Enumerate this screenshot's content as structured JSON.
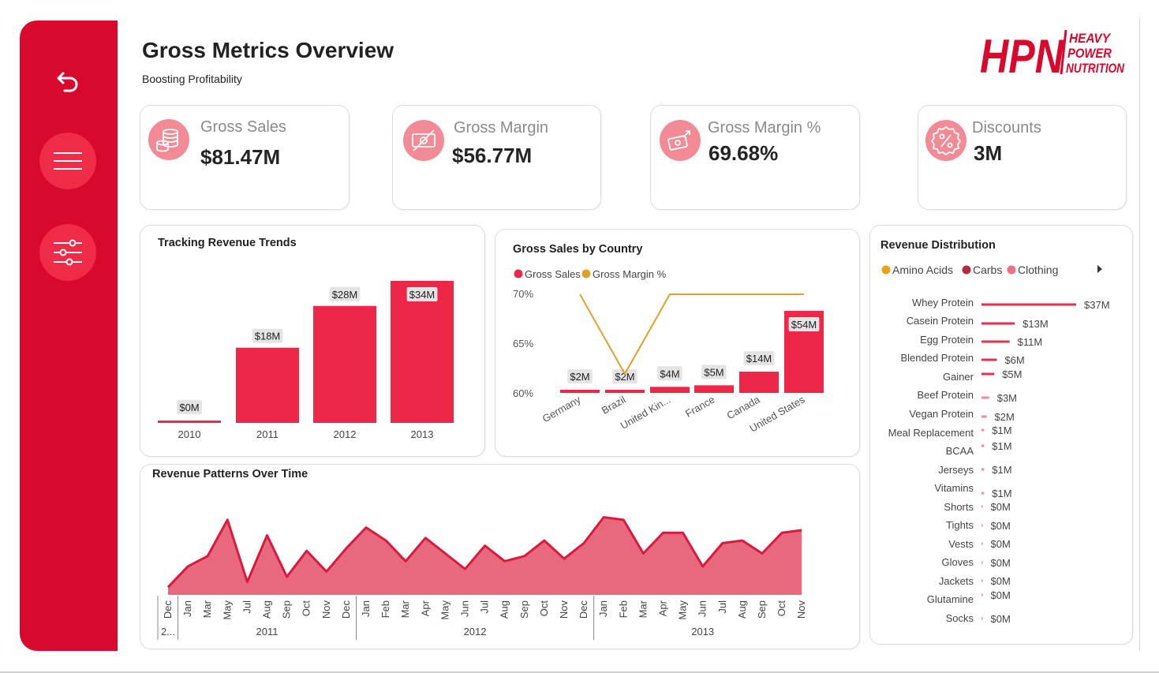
{
  "header": {
    "title": "Gross Metrics Overview",
    "subtitle": "Boosting Profitability"
  },
  "logo": {
    "mark": "HPN",
    "line1": "HEAVY",
    "line2": "POWER",
    "line3": "NUTRITION"
  },
  "sidebar": {
    "items": [
      {
        "icon": "back-arrow-icon"
      },
      {
        "icon": "menu-icon"
      },
      {
        "icon": "sliders-icon"
      }
    ]
  },
  "colors": {
    "brand": "#d9082d",
    "bar": "#ee2648",
    "line": "#dca328",
    "area": "#e8697e",
    "area_line": "#d81b3c"
  },
  "kpis": [
    {
      "label": "Gross Sales",
      "value": "$81.47M",
      "icon": "coins-icon"
    },
    {
      "label": "Gross Margin",
      "value": "$56.77M",
      "icon": "money-icon"
    },
    {
      "label": "Gross Margin %",
      "value": "69.68%",
      "icon": "cash-up-icon"
    },
    {
      "label": "Discounts",
      "value": "3M",
      "icon": "percent-badge-icon"
    }
  ],
  "panels": {
    "trends": "Tracking Revenue Trends",
    "country": "Gross Sales by Country",
    "distribution": "Revenue Distribution",
    "patterns": "Revenue Patterns Over Time"
  },
  "chart_data": [
    {
      "type": "bar",
      "title": "Tracking Revenue Trends",
      "categories": [
        "2010",
        "2011",
        "2012",
        "2013"
      ],
      "values": [
        0.2,
        18,
        28,
        34
      ],
      "labels": [
        "$0M",
        "$18M",
        "$28M",
        "$34M"
      ],
      "ylim": [
        0,
        34
      ]
    },
    {
      "type": "bar",
      "title": "Gross Sales by Country",
      "legend": [
        "Gross Sales",
        "Gross Margin %"
      ],
      "categories": [
        "Germany",
        "Brazil",
        "United Kin...",
        "France",
        "Canada",
        "United States"
      ],
      "series": [
        {
          "name": "Gross Sales",
          "values": [
            2,
            2,
            4,
            5,
            14,
            54
          ],
          "labels": [
            "$2M",
            "$2M",
            "$4M",
            "$5M",
            "$14M",
            "$54M"
          ]
        },
        {
          "name": "Gross Margin %",
          "values": [
            70,
            62,
            70,
            70,
            70,
            70
          ]
        }
      ],
      "y_ticks": [
        "70%",
        "65%",
        "60%"
      ],
      "ylim": [
        60,
        70
      ]
    },
    {
      "type": "bar",
      "title": "Revenue Distribution",
      "legend": [
        "Amino Acids",
        "Carbs",
        "Clothing"
      ],
      "legend_colors": [
        "#e8a317",
        "#b42b3d",
        "#ee6f82"
      ],
      "categories": [
        "Whey Protein",
        "Casein Protein",
        "Egg Protein",
        "Blended Protein",
        "Gainer",
        "Beef Protein",
        "Vegan Protein",
        "Meal Replacement",
        "BCAA",
        "Jerseys",
        "Vitamins",
        "Shorts",
        "Tights",
        "Vests",
        "Gloves",
        "Jackets",
        "Glutamine",
        "Socks"
      ],
      "values": [
        37,
        13,
        11,
        6,
        5,
        3,
        2,
        1,
        1,
        1,
        1,
        0,
        0,
        0,
        0,
        0,
        0,
        0
      ],
      "labels": [
        "$37M",
        "$13M",
        "$11M",
        "$6M",
        "$5M",
        "$3M",
        "$2M",
        "$1M",
        "$1M",
        "$1M",
        "$1M",
        "$0M",
        "$0M",
        "$0M",
        "$0M",
        "$0M",
        "$0M",
        "$0M"
      ]
    },
    {
      "type": "area",
      "title": "Revenue Patterns Over Time",
      "months": [
        "Dec",
        "Jan",
        "Mar",
        "May",
        "Jul",
        "Aug",
        "Sep",
        "Oct",
        "Nov",
        "Dec",
        "Jan",
        "Feb",
        "Mar",
        "Apr",
        "May",
        "Jun",
        "Jul",
        "Aug",
        "Sep",
        "Oct",
        "Nov",
        "Dec",
        "Jan",
        "Feb",
        "Mar",
        "Apr",
        "May",
        "Jun",
        "Jul",
        "Aug",
        "Sep",
        "Oct",
        "Nov"
      ],
      "values": [
        0.3,
        1.1,
        1.5,
        2.9,
        0.5,
        2.3,
        0.7,
        1.7,
        0.9,
        1.8,
        2.6,
        2.1,
        1.3,
        2.2,
        1.6,
        1.0,
        1.9,
        1.3,
        1.5,
        2.1,
        1.4,
        2.0,
        3.0,
        2.9,
        1.6,
        2.4,
        2.4,
        1.1,
        2.0,
        2.1,
        1.6,
        2.4,
        2.5
      ],
      "ylim": [
        0,
        3.2
      ],
      "years": [
        {
          "label": "2...",
          "start": 0,
          "end": 0
        },
        {
          "label": "2011",
          "start": 1,
          "end": 9
        },
        {
          "label": "2012",
          "start": 10,
          "end": 21
        },
        {
          "label": "2013",
          "start": 22,
          "end": 32
        }
      ]
    }
  ]
}
